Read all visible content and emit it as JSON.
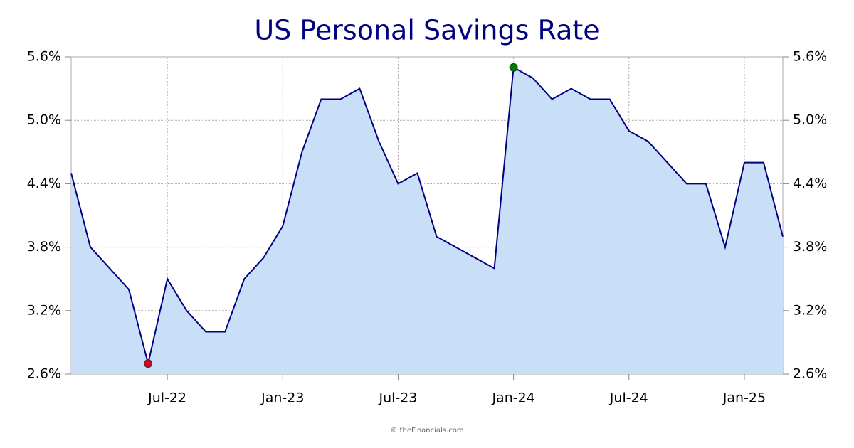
{
  "chart_data": {
    "type": "area",
    "title": "US Personal Savings Rate",
    "source": "© theFinancials.com",
    "categories": [
      null,
      null,
      null,
      null,
      null,
      "Jul-22",
      null,
      null,
      null,
      null,
      null,
      "Jan-23",
      null,
      null,
      null,
      null,
      null,
      "Jul-23",
      null,
      null,
      null,
      null,
      null,
      "Jan-24",
      null,
      null,
      null,
      null,
      null,
      "Jul-24",
      null,
      null,
      null,
      null,
      null,
      "Jan-25",
      null,
      null
    ],
    "series": [
      {
        "name": "US Personal Savings Rate",
        "color": "#000080",
        "fill": "#c9dff7",
        "values": [
          4.5,
          3.8,
          3.6,
          3.4,
          2.7,
          3.5,
          3.2,
          3.0,
          3.0,
          3.5,
          3.7,
          4.0,
          4.7,
          5.2,
          5.2,
          5.3,
          4.8,
          4.4,
          4.5,
          3.9,
          3.8,
          3.7,
          3.6,
          5.5,
          5.4,
          5.2,
          5.3,
          5.2,
          5.2,
          4.9,
          4.8,
          4.6,
          4.4,
          4.4,
          3.8,
          4.6,
          4.6,
          3.9
        ]
      }
    ],
    "ylim": [
      2.6,
      5.6
    ],
    "yticks": [
      {
        "value": 2.6,
        "label": "2.6%"
      },
      {
        "value": 3.2,
        "label": "3.2%"
      },
      {
        "value": 3.8,
        "label": "3.8%"
      },
      {
        "value": 4.4,
        "label": "4.4%"
      },
      {
        "value": 5.0,
        "label": "5.0%"
      },
      {
        "value": 5.6,
        "label": "5.6%"
      }
    ],
    "grid": true,
    "min_marker_color": "#e0001b",
    "max_marker_color": "#007a00"
  }
}
